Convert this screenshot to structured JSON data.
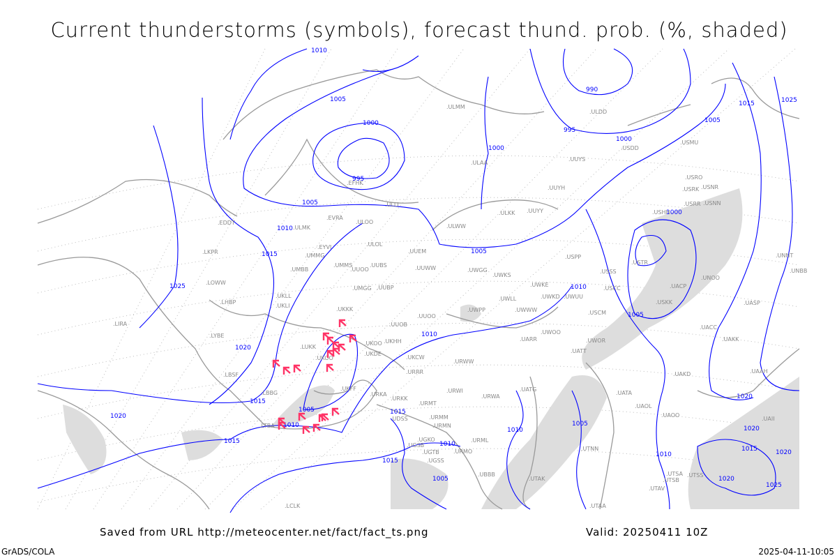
{
  "title": "Current thunderstorms (symbols), forecast thund. prob. (%, shaded)",
  "saved_from": "Saved from URL http://meteocenter.net/fact/fact_ts.png",
  "valid": "Valid: 20250411 10Z",
  "software": "GrADS/COLA",
  "timestamp": "2025-04-11-10:05",
  "colors": {
    "isobar": "#0000ff",
    "coast": "#999999",
    "thunderstorm_symbol": "#ff3366",
    "shading": "#dddddd"
  },
  "map": {
    "contour_field": "sea-level pressure isobars (hPa)",
    "contour_labels": [
      "1010",
      "1005",
      "1000",
      "995",
      "1005",
      "1010",
      "1015",
      "1025",
      "1020",
      "1015",
      "1020",
      "1015",
      "1005",
      "1010",
      "1015",
      "1010",
      "1015",
      "1005",
      "1010",
      "1010",
      "1005",
      "1005",
      "1000",
      "995",
      "990",
      "1000",
      "1005",
      "1015",
      "1025",
      "1000",
      "1020",
      "1020",
      "1015",
      "1020",
      "1020",
      "1025",
      "1005",
      "1010",
      "1010"
    ],
    "stations": [
      "ULLI",
      "EVRA",
      "ULOO",
      "ULOL",
      "UUEM",
      "UMMG",
      "EYVI",
      "UMBB",
      "UMMS",
      "UUOO",
      "UUBS",
      "UUWW",
      "UMGG",
      "UUBP",
      "UKLL",
      "UKLI",
      "UKKK",
      "UUOB",
      "UUOO",
      "UKHH",
      "UKOO",
      "UKDE",
      "LUKK",
      "UKOO",
      "UKFF",
      "URKA",
      "URKK",
      "URRR",
      "UKCW",
      "URWI",
      "URMT",
      "URMM",
      "URMN",
      "URWA",
      "URWW",
      "UWWW",
      "UWKE",
      "UWKD",
      "UWUU",
      "UWLL",
      "UWPP",
      "UWGG",
      "UWKS",
      "UUYY",
      "ULWW",
      "ULKK",
      "UUYH",
      "ULAA",
      "UUYS",
      "ULDD",
      "USDD",
      "USMU",
      "USRO",
      "USRK",
      "USNR",
      "USRR",
      "USNN",
      "USHH",
      "USTR",
      "USPP",
      "USSS",
      "USCC",
      "USCM",
      "UWOO",
      "UARR",
      "UATT",
      "UWOR",
      "USKK",
      "UACP",
      "UNOO",
      "UASP",
      "UACC",
      "UAKK",
      "UAKD",
      "UAAH",
      "UAII",
      "UATG",
      "UATA",
      "UAOL",
      "UAOO",
      "UTNN",
      "UTSA",
      "UTSB",
      "UTSS",
      "UTAV",
      "UTAK",
      "UTAA",
      "UGSB",
      "UGKO",
      "UDSS",
      "UBBB",
      "UGTB",
      "UGSS",
      "URML",
      "URMO",
      "LTBA",
      "LBSF",
      "LBBG",
      "LYBE",
      "LIRA",
      "LHBP",
      "LOWW",
      "LKPR",
      "EDDT",
      "EFHK",
      "UNBB",
      "UNNT",
      "LCLK",
      "ULMM",
      "ULMK"
    ],
    "thunderstorm_count": 20
  }
}
